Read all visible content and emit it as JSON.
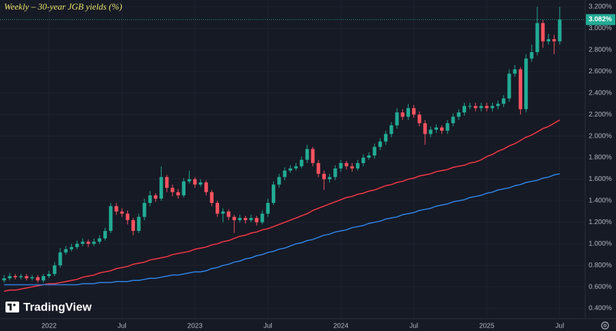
{
  "chart_data": {
    "type": "candlestick",
    "title": "Weekly – 30-year JGB yields (%)",
    "logo": "TradingView",
    "categories": [
      null,
      null,
      null,
      null,
      null,
      null,
      null,
      null,
      "2022",
      null,
      null,
      null,
      null,
      null,
      null,
      null,
      null,
      null,
      null,
      null,
      null,
      "Jul",
      null,
      null,
      null,
      null,
      null,
      null,
      null,
      null,
      null,
      null,
      null,
      null,
      "2023",
      null,
      null,
      null,
      null,
      null,
      null,
      null,
      null,
      null,
      null,
      null,
      null,
      "Jul",
      null,
      null,
      null,
      null,
      null,
      null,
      null,
      null,
      null,
      null,
      null,
      null,
      "2024",
      null,
      null,
      null,
      null,
      null,
      null,
      null,
      null,
      null,
      null,
      null,
      null,
      "Jul",
      null,
      null,
      null,
      null,
      null,
      null,
      null,
      null,
      null,
      null,
      null,
      null,
      "2025",
      null,
      null,
      null,
      null,
      null,
      null,
      null,
      null,
      null,
      null,
      null,
      null,
      "Jul"
    ],
    "open": [
      0.66,
      0.68,
      0.7,
      0.69,
      0.7,
      0.68,
      0.69,
      0.66,
      0.7,
      0.72,
      0.8,
      0.92,
      0.95,
      0.97,
      1.0,
      1.02,
      1.0,
      1.02,
      1.05,
      1.12,
      1.35,
      1.3,
      1.28,
      1.22,
      1.12,
      1.25,
      1.38,
      1.45,
      1.42,
      1.62,
      1.52,
      1.48,
      1.45,
      1.58,
      1.6,
      1.55,
      1.57,
      1.48,
      1.38,
      1.28,
      1.3,
      1.25,
      1.22,
      1.24,
      1.22,
      1.24,
      1.2,
      1.28,
      1.38,
      1.55,
      1.62,
      1.68,
      1.7,
      1.72,
      1.78,
      1.88,
      1.75,
      1.65,
      1.6,
      1.62,
      1.7,
      1.75,
      1.72,
      1.7,
      1.75,
      1.8,
      1.82,
      1.9,
      1.95,
      2.02,
      2.1,
      2.22,
      2.18,
      2.26,
      2.2,
      2.12,
      2.02,
      2.06,
      2.08,
      2.05,
      2.12,
      2.18,
      2.22,
      2.28,
      2.28,
      2.26,
      2.28,
      2.26,
      2.28,
      2.3,
      2.35,
      2.58,
      2.62,
      2.25,
      2.72,
      2.78,
      3.05,
      2.88,
      2.9,
      2.88
    ],
    "high": [
      0.71,
      0.73,
      0.72,
      0.72,
      0.72,
      0.71,
      0.71,
      0.72,
      0.75,
      0.83,
      0.96,
      0.98,
      1.0,
      1.03,
      1.05,
      1.04,
      1.05,
      1.08,
      1.15,
      1.38,
      1.38,
      1.33,
      1.31,
      1.24,
      1.28,
      1.42,
      1.49,
      1.47,
      1.72,
      1.64,
      1.55,
      1.51,
      1.61,
      1.68,
      1.62,
      1.6,
      1.59,
      1.5,
      1.4,
      1.33,
      1.32,
      1.27,
      1.27,
      1.26,
      1.27,
      1.26,
      1.31,
      1.42,
      1.58,
      1.65,
      1.71,
      1.73,
      1.75,
      1.81,
      1.92,
      1.9,
      1.78,
      1.68,
      1.65,
      1.73,
      1.78,
      1.77,
      1.75,
      1.78,
      1.83,
      1.85,
      1.93,
      1.98,
      2.05,
      2.13,
      2.26,
      2.25,
      2.3,
      2.29,
      2.23,
      2.15,
      2.09,
      2.11,
      2.1,
      2.15,
      2.21,
      2.25,
      2.31,
      2.31,
      2.31,
      2.31,
      2.31,
      2.31,
      2.33,
      2.38,
      2.62,
      2.66,
      2.64,
      2.76,
      2.85,
      3.2,
      3.08,
      2.95,
      2.94,
      3.2
    ],
    "low": [
      0.64,
      0.66,
      0.67,
      0.67,
      0.66,
      0.66,
      0.64,
      0.64,
      0.68,
      0.7,
      0.78,
      0.9,
      0.93,
      0.95,
      0.98,
      0.97,
      0.98,
      1.0,
      1.03,
      1.1,
      1.27,
      1.25,
      1.18,
      1.08,
      1.1,
      1.22,
      1.35,
      1.39,
      1.4,
      1.48,
      1.44,
      1.42,
      1.43,
      1.56,
      1.52,
      1.53,
      1.45,
      1.35,
      1.25,
      1.2,
      1.22,
      1.1,
      1.2,
      1.19,
      1.2,
      1.17,
      1.18,
      1.25,
      1.36,
      1.52,
      1.59,
      1.66,
      1.68,
      1.7,
      1.75,
      1.72,
      1.62,
      1.5,
      1.57,
      1.59,
      1.67,
      1.69,
      1.67,
      1.68,
      1.72,
      1.78,
      1.79,
      1.87,
      1.92,
      1.99,
      2.07,
      2.15,
      2.15,
      2.17,
      2.09,
      1.92,
      1.99,
      2.03,
      2.02,
      2.02,
      2.09,
      2.15,
      2.19,
      2.25,
      2.23,
      2.23,
      2.23,
      2.23,
      2.25,
      2.27,
      2.32,
      2.55,
      2.2,
      2.22,
      2.69,
      2.75,
      2.82,
      2.85,
      2.76,
      2.85
    ],
    "close": [
      0.68,
      0.7,
      0.69,
      0.7,
      0.68,
      0.69,
      0.66,
      0.7,
      0.72,
      0.8,
      0.92,
      0.95,
      0.97,
      1.0,
      1.02,
      1.0,
      1.02,
      1.05,
      1.12,
      1.35,
      1.3,
      1.28,
      1.22,
      1.12,
      1.25,
      1.38,
      1.45,
      1.42,
      1.62,
      1.52,
      1.48,
      1.45,
      1.58,
      1.6,
      1.55,
      1.57,
      1.48,
      1.38,
      1.28,
      1.3,
      1.25,
      1.22,
      1.24,
      1.22,
      1.24,
      1.2,
      1.28,
      1.38,
      1.55,
      1.62,
      1.68,
      1.7,
      1.72,
      1.78,
      1.88,
      1.75,
      1.65,
      1.6,
      1.62,
      1.7,
      1.75,
      1.72,
      1.7,
      1.75,
      1.8,
      1.82,
      1.9,
      1.95,
      2.02,
      2.1,
      2.22,
      2.18,
      2.26,
      2.2,
      2.12,
      2.02,
      2.06,
      2.08,
      2.05,
      2.12,
      2.18,
      2.22,
      2.28,
      2.28,
      2.26,
      2.28,
      2.26,
      2.28,
      2.3,
      2.35,
      2.58,
      2.62,
      2.25,
      2.72,
      2.78,
      3.05,
      2.88,
      2.9,
      2.88,
      3.082
    ],
    "up_color": "#22ab94",
    "down_color": "#f7525f",
    "overlays": [
      {
        "color": "#f23645",
        "values": [
          0.56,
          0.57,
          0.57,
          0.58,
          0.59,
          0.6,
          0.61,
          0.62,
          0.63,
          0.63,
          0.64,
          0.65,
          0.66,
          0.67,
          0.69,
          0.7,
          0.71,
          0.73,
          0.74,
          0.75,
          0.77,
          0.78,
          0.79,
          0.81,
          0.82,
          0.83,
          0.85,
          0.86,
          0.87,
          0.88,
          0.9,
          0.91,
          0.92,
          0.93,
          0.95,
          0.96,
          0.97,
          0.99,
          1.0,
          1.02,
          1.03,
          1.05,
          1.07,
          1.08,
          1.1,
          1.11,
          1.13,
          1.14,
          1.16,
          1.18,
          1.2,
          1.22,
          1.24,
          1.26,
          1.28,
          1.31,
          1.33,
          1.35,
          1.37,
          1.39,
          1.41,
          1.43,
          1.44,
          1.46,
          1.47,
          1.49,
          1.5,
          1.52,
          1.54,
          1.55,
          1.57,
          1.58,
          1.6,
          1.61,
          1.63,
          1.64,
          1.65,
          1.67,
          1.68,
          1.69,
          1.71,
          1.72,
          1.73,
          1.75,
          1.76,
          1.78,
          1.81,
          1.83,
          1.86,
          1.88,
          1.91,
          1.93,
          1.96,
          1.99,
          2.01,
          2.04,
          2.07,
          2.09,
          2.12,
          2.15
        ]
      },
      {
        "color": "#2f7fe0",
        "values": [
          0.62,
          0.62,
          0.62,
          0.62,
          0.62,
          0.62,
          0.62,
          0.62,
          0.62,
          0.62,
          0.62,
          0.62,
          0.62,
          0.62,
          0.63,
          0.63,
          0.63,
          0.64,
          0.64,
          0.64,
          0.65,
          0.65,
          0.65,
          0.66,
          0.66,
          0.67,
          0.68,
          0.68,
          0.69,
          0.7,
          0.71,
          0.71,
          0.72,
          0.73,
          0.74,
          0.74,
          0.75,
          0.77,
          0.78,
          0.8,
          0.81,
          0.83,
          0.84,
          0.86,
          0.87,
          0.89,
          0.9,
          0.92,
          0.93,
          0.95,
          0.96,
          0.98,
          1.0,
          1.01,
          1.03,
          1.04,
          1.06,
          1.08,
          1.09,
          1.11,
          1.12,
          1.13,
          1.15,
          1.16,
          1.17,
          1.19,
          1.2,
          1.21,
          1.23,
          1.24,
          1.25,
          1.27,
          1.28,
          1.29,
          1.31,
          1.32,
          1.33,
          1.35,
          1.36,
          1.37,
          1.39,
          1.4,
          1.41,
          1.43,
          1.44,
          1.45,
          1.47,
          1.48,
          1.5,
          1.51,
          1.52,
          1.54,
          1.55,
          1.57,
          1.58,
          1.59,
          1.61,
          1.62,
          1.64,
          1.65
        ]
      }
    ],
    "ylim": [
      0.305,
      3.264
    ],
    "yticks": [
      {
        "value": 0.4,
        "label": "0.400%"
      },
      {
        "value": 0.6,
        "label": "0.600%"
      },
      {
        "value": 0.8,
        "label": "0.800%"
      },
      {
        "value": 1.0,
        "label": "1.000%"
      },
      {
        "value": 1.2,
        "label": "1.200%"
      },
      {
        "value": 1.4,
        "label": "1.400%"
      },
      {
        "value": 1.6,
        "label": "1.600%"
      },
      {
        "value": 1.8,
        "label": "1.800%"
      },
      {
        "value": 2.0,
        "label": "2.000%"
      },
      {
        "value": 2.2,
        "label": "2.200%"
      },
      {
        "value": 2.4,
        "label": "2.400%"
      },
      {
        "value": 2.6,
        "label": "2.600%"
      },
      {
        "value": 2.8,
        "label": "2.800%"
      },
      {
        "value": 3.0,
        "label": "3.000%"
      },
      {
        "value": 3.2,
        "label": "3.200%"
      }
    ],
    "last_price": {
      "value": 3.082,
      "label": "3.082%"
    },
    "grid": true
  }
}
